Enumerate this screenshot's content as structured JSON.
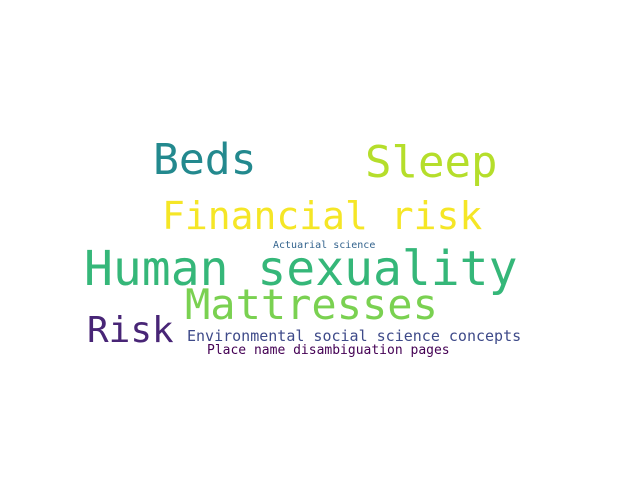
{
  "word_cloud": {
    "words": [
      {
        "text": "Beds",
        "color": "#23898e"
      },
      {
        "text": "Sleep",
        "color": "#b5de2b"
      },
      {
        "text": "Financial risk",
        "color": "#f5e626"
      },
      {
        "text": "Actuarial science",
        "color": "#33638d"
      },
      {
        "text": "Human sexuality",
        "color": "#35b779"
      },
      {
        "text": "Mattresses",
        "color": "#7ad151"
      },
      {
        "text": "Risk",
        "color": "#482576"
      },
      {
        "text": "Environmental social science concepts",
        "color": "#3e4a89"
      },
      {
        "text": "Place name disambiguation pages",
        "color": "#440154"
      }
    ]
  }
}
